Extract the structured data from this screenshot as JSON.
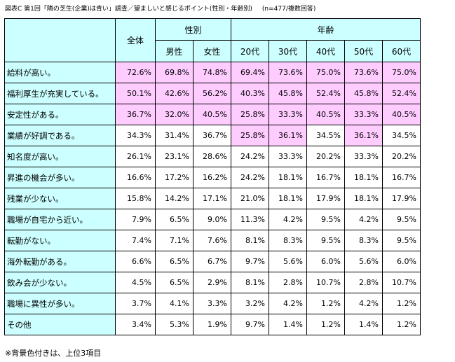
{
  "title": "図表C 第1回「隣の芝生(企業)は青い」調査／望ましいと感じるポイント(性別・年齢別)",
  "note": "(n=477/複数回答)",
  "headers": {
    "total": "全体",
    "gender_group": "性別",
    "age_group": "年齢",
    "columns": [
      "男性",
      "女性",
      "20代",
      "30代",
      "40代",
      "50代",
      "60代"
    ]
  },
  "rows": [
    {
      "label": "給料が高い。",
      "values": [
        "72.6%",
        "69.8%",
        "74.8%",
        "69.4%",
        "73.6%",
        "75.0%",
        "73.6%",
        "75.0%"
      ],
      "highlight": [
        true,
        true,
        true,
        true,
        true,
        true,
        true,
        true
      ]
    },
    {
      "label": "福利厚生が充実している。",
      "values": [
        "50.1%",
        "42.6%",
        "56.2%",
        "40.3%",
        "45.8%",
        "52.4%",
        "45.8%",
        "52.4%"
      ],
      "highlight": [
        true,
        true,
        true,
        true,
        true,
        true,
        true,
        true
      ]
    },
    {
      "label": "安定性がある。",
      "values": [
        "36.7%",
        "32.0%",
        "40.5%",
        "25.8%",
        "33.3%",
        "40.5%",
        "33.3%",
        "40.5%"
      ],
      "highlight": [
        true,
        true,
        true,
        true,
        true,
        true,
        true,
        true
      ]
    },
    {
      "label": "業績が好調である。",
      "values": [
        "34.3%",
        "31.4%",
        "36.7%",
        "25.8%",
        "36.1%",
        "34.5%",
        "36.1%",
        "34.5%"
      ],
      "highlight": [
        false,
        false,
        false,
        true,
        true,
        false,
        true,
        false
      ]
    },
    {
      "label": "知名度が高い。",
      "values": [
        "26.1%",
        "23.1%",
        "28.6%",
        "24.2%",
        "33.3%",
        "20.2%",
        "33.3%",
        "20.2%"
      ],
      "highlight": [
        false,
        false,
        false,
        false,
        false,
        false,
        false,
        false
      ]
    },
    {
      "label": "昇進の機会が多い。",
      "values": [
        "16.6%",
        "17.2%",
        "16.2%",
        "24.2%",
        "18.1%",
        "16.7%",
        "18.1%",
        "16.7%"
      ],
      "highlight": [
        false,
        false,
        false,
        false,
        false,
        false,
        false,
        false
      ]
    },
    {
      "label": "残業が少ない。",
      "values": [
        "15.8%",
        "14.2%",
        "17.1%",
        "21.0%",
        "18.1%",
        "17.9%",
        "18.1%",
        "17.9%"
      ],
      "highlight": [
        false,
        false,
        false,
        false,
        false,
        false,
        false,
        false
      ]
    },
    {
      "label": "職場が自宅から近い。",
      "values": [
        "7.9%",
        "6.5%",
        "9.0%",
        "11.3%",
        "4.2%",
        "9.5%",
        "4.2%",
        "9.5%"
      ],
      "highlight": [
        false,
        false,
        false,
        false,
        false,
        false,
        false,
        false
      ]
    },
    {
      "label": "転勤がない。",
      "values": [
        "7.4%",
        "7.1%",
        "7.6%",
        "8.1%",
        "8.3%",
        "9.5%",
        "8.3%",
        "9.5%"
      ],
      "highlight": [
        false,
        false,
        false,
        false,
        false,
        false,
        false,
        false
      ]
    },
    {
      "label": "海外転勤がある。",
      "values": [
        "6.6%",
        "6.5%",
        "6.7%",
        "9.7%",
        "5.6%",
        "6.0%",
        "5.6%",
        "6.0%"
      ],
      "highlight": [
        false,
        false,
        false,
        false,
        false,
        false,
        false,
        false
      ]
    },
    {
      "label": "飲み会が少ない。",
      "values": [
        "4.5%",
        "6.5%",
        "2.9%",
        "8.1%",
        "2.8%",
        "10.7%",
        "2.8%",
        "10.7%"
      ],
      "highlight": [
        false,
        false,
        false,
        false,
        false,
        false,
        false,
        false
      ]
    },
    {
      "label": "職場に異性が多い。",
      "values": [
        "3.7%",
        "4.1%",
        "3.3%",
        "3.2%",
        "4.2%",
        "1.2%",
        "4.2%",
        "1.2%"
      ],
      "highlight": [
        false,
        false,
        false,
        false,
        false,
        false,
        false,
        false
      ]
    },
    {
      "label": "その他",
      "values": [
        "3.4%",
        "5.3%",
        "1.9%",
        "9.7%",
        "1.4%",
        "1.2%",
        "1.4%",
        "1.2%"
      ],
      "highlight": [
        false,
        false,
        false,
        false,
        false,
        false,
        false,
        false
      ]
    }
  ],
  "footnote": "※背景色付きは、上位3項目",
  "colors": {
    "header_bg": "#ccffff",
    "highlight_bg": "#ffccff"
  }
}
